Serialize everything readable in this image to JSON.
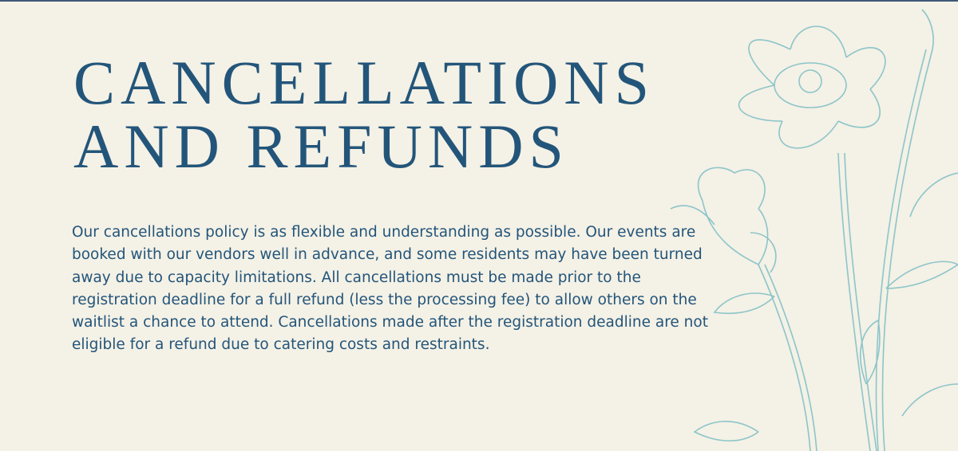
{
  "title": {
    "line1": "CANCELLATIONS",
    "line2": "AND REFUNDS"
  },
  "body": "Our cancellations policy is as flexible and understanding as possible. Our events are booked with our vendors well in advance, and some residents may have been turned away due to capacity limitations. All cancellations must be made prior to the registration deadline for a full refund (less the processing fee) to allow others on the waitlist a chance to attend. Cancellations made after the registration deadline are not eligible for a refund due to catering costs and restraints.",
  "colors": {
    "background": "#f4f1e6",
    "text": "#23557a",
    "illustration": "#8cc5c9"
  }
}
